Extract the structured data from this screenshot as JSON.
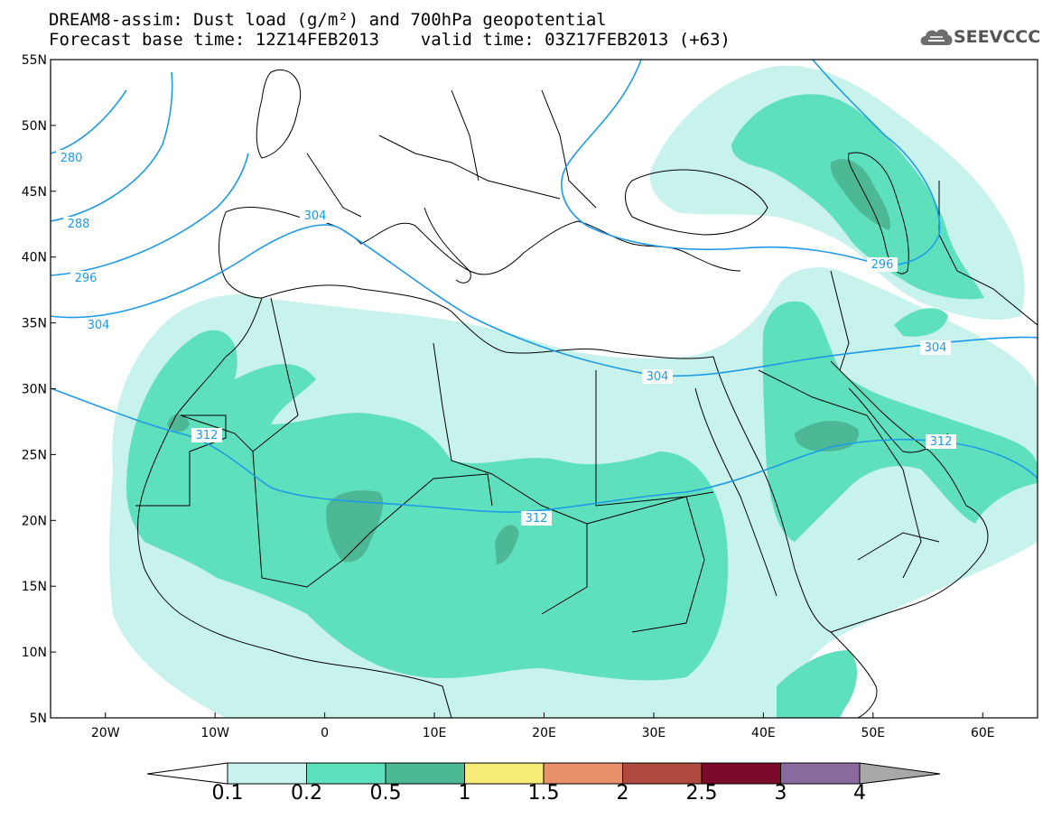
{
  "title": {
    "line1": "DREAM8-assim: Dust load (g/m²) and 700hPa geopotential",
    "line2": "Forecast base time: 12Z14FEB2013    valid time: 03Z17FEB2013 (+63)"
  },
  "logo": {
    "text": "SEEVCCC",
    "icon": "cloud-icon"
  },
  "axes": {
    "lat_labels": [
      "55N",
      "50N",
      "45N",
      "40N",
      "35N",
      "30N",
      "25N",
      "20N",
      "15N",
      "10N",
      "5N"
    ],
    "lon_labels": [
      "20W",
      "10W",
      "0",
      "10E",
      "20E",
      "30E",
      "40E",
      "50E",
      "60E"
    ],
    "lat_range": [
      5,
      55
    ],
    "lon_range": [
      -25,
      65
    ]
  },
  "contours": {
    "labels": [
      "280",
      "288",
      "296",
      "304",
      "304",
      "304",
      "296",
      "304",
      "312",
      "312",
      "312"
    ]
  },
  "colorbar": {
    "labels": [
      "0.1",
      "0.2",
      "0.5",
      "1",
      "1.5",
      "2",
      "2.5",
      "3",
      "4"
    ],
    "colors": [
      "#c8f2ec",
      "#5fe0bd",
      "#4cb896",
      "#f5ec78",
      "#e8916a",
      "#b04a3e",
      "#7d0a2a",
      "#8a6a9e",
      "#a8a8a8"
    ]
  },
  "colors": {
    "dust_0_1": "#c8f2ec",
    "dust_0_2": "#5fe0bd",
    "dust_0_5": "#4cb896",
    "geopotential_line": "#1e9be8",
    "border": "#000000"
  }
}
